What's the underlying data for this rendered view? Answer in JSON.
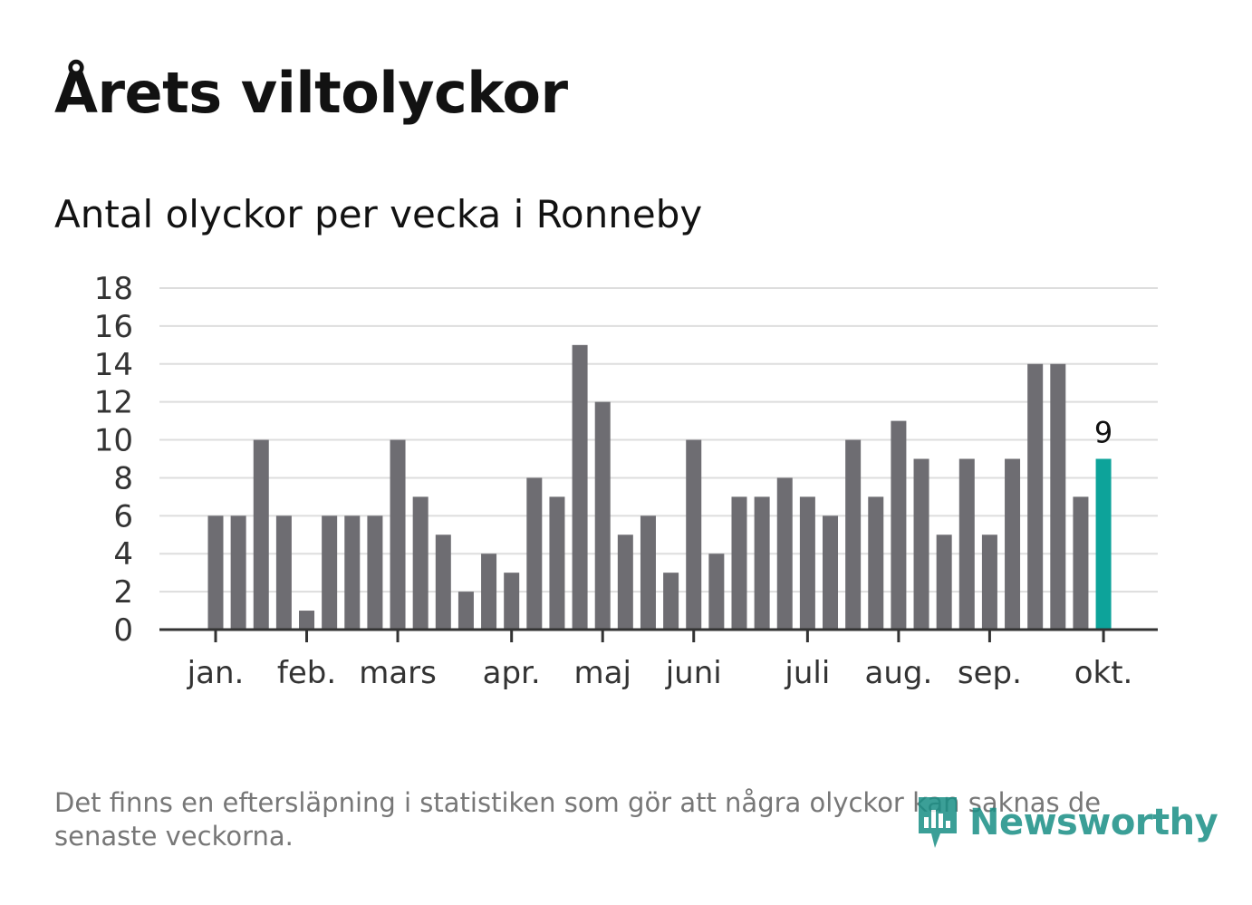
{
  "header": {
    "title": "Årets viltolyckor",
    "subtitle": "Antal olyckor per vecka i Ronneby"
  },
  "chart_data": {
    "type": "bar",
    "title": "Årets viltolyckor",
    "subtitle": "Antal olyckor per vecka i Ronneby",
    "xlabel": "",
    "ylabel": "",
    "ylim": [
      0,
      18
    ],
    "yticks": [
      "0",
      "2",
      "4",
      "6",
      "8",
      "10",
      "12",
      "14",
      "16",
      "18"
    ],
    "grid": true,
    "values": [
      6,
      6,
      10,
      6,
      1,
      6,
      6,
      6,
      10,
      7,
      5,
      2,
      4,
      3,
      8,
      7,
      15,
      12,
      5,
      6,
      3,
      10,
      4,
      7,
      7,
      8,
      7,
      6,
      10,
      7,
      11,
      9,
      5,
      9,
      5,
      9,
      14,
      14,
      7,
      9
    ],
    "month_ticks": [
      {
        "label": "jan.",
        "week_index": 0
      },
      {
        "label": "feb.",
        "week_index": 4
      },
      {
        "label": "mars",
        "week_index": 8
      },
      {
        "label": "apr.",
        "week_index": 13
      },
      {
        "label": "maj",
        "week_index": 17
      },
      {
        "label": "juni",
        "week_index": 21
      },
      {
        "label": "juli",
        "week_index": 26
      },
      {
        "label": "aug.",
        "week_index": 30
      },
      {
        "label": "sep.",
        "week_index": 34
      },
      {
        "label": "okt.",
        "week_index": 39
      }
    ],
    "highlight": {
      "week_index": 39,
      "label": "9"
    },
    "colors": {
      "bar": "#6e6d72",
      "highlight": "#0da39a",
      "grid": "#dddddd",
      "axis": "#333333"
    }
  },
  "footer": {
    "note": "Det finns en eftersläpning i statistiken som gör att några olyckor kan saknas de senaste veckorna.",
    "brand": "Newsworthy",
    "brand_color": "#1a8f86",
    "brand_icon": "bar-chart-speech-icon"
  }
}
